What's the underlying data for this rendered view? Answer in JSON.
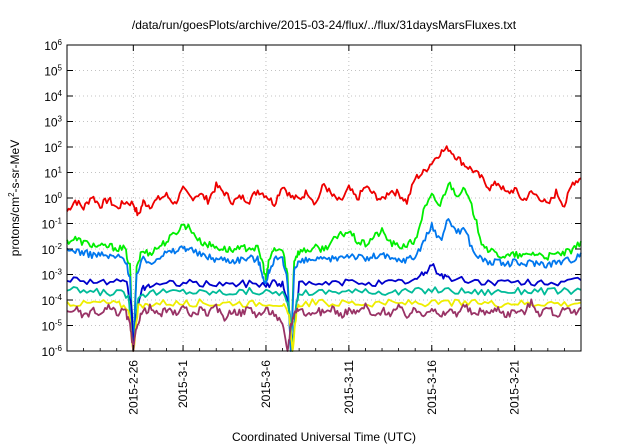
{
  "chart_data": {
    "type": "line",
    "title": "/data/run/goesPlots/archive/2015-03-24/flux/../flux/31daysMarsFluxes.txt",
    "xlabel": "Coordinated Universal Time (UTC)",
    "ylabel_parts": [
      "protons/cm",
      "2",
      "-s-sr-MeV"
    ],
    "yscale": "log",
    "ylim": [
      1e-06,
      1000000.0
    ],
    "xlim": [
      "2015-02-22",
      "2015-03-25"
    ],
    "grid": true,
    "y_ticks": [
      {
        "base": "10",
        "exp": "-6",
        "value": 1e-06
      },
      {
        "base": "10",
        "exp": "-5",
        "value": 1e-05
      },
      {
        "base": "10",
        "exp": "-4",
        "value": 0.0001
      },
      {
        "base": "10",
        "exp": "-3",
        "value": 0.001
      },
      {
        "base": "10",
        "exp": "-2",
        "value": 0.01
      },
      {
        "base": "10",
        "exp": "-1",
        "value": 0.1
      },
      {
        "base": "10",
        "exp": "0",
        "value": 1
      },
      {
        "base": "10",
        "exp": "1",
        "value": 10.0
      },
      {
        "base": "10",
        "exp": "2",
        "value": 100.0
      },
      {
        "base": "10",
        "exp": "3",
        "value": 1000.0
      },
      {
        "base": "10",
        "exp": "4",
        "value": 10000.0
      },
      {
        "base": "10",
        "exp": "5",
        "value": 100000.0
      },
      {
        "base": "10",
        "exp": "6",
        "value": 1000000.0
      }
    ],
    "x_ticks": [
      {
        "label": "2015-2-26",
        "day": 4
      },
      {
        "label": "2015-3-1",
        "day": 7
      },
      {
        "label": "2015-3-6",
        "day": 12
      },
      {
        "label": "2015-3-11",
        "day": 17
      },
      {
        "label": "2015-3-16",
        "day": 22
      },
      {
        "label": "2015-3-21",
        "day": 27
      }
    ],
    "series": [
      {
        "color": "#ee0000",
        "x": [
          0,
          0.5,
          1,
          1.5,
          2,
          2.5,
          3,
          3.5,
          4,
          4.3,
          4.6,
          5,
          5.5,
          6,
          6.5,
          7,
          7.5,
          8,
          8.5,
          9,
          9.5,
          10,
          10.5,
          11,
          11.5,
          12,
          12.5,
          13,
          13.5,
          14,
          14.5,
          15,
          15.5,
          16,
          16.5,
          17,
          17.5,
          18,
          18.5,
          19,
          19.5,
          20,
          20.5,
          21,
          21.5,
          22,
          22.5,
          23,
          23.5,
          24,
          24.5,
          25,
          25.5,
          26,
          26.5,
          27,
          27.5,
          28,
          28.5,
          29,
          29.5,
          30,
          30.5,
          31
        ],
        "y": [
          0.3,
          0.8,
          0.4,
          1.2,
          0.5,
          0.9,
          0.4,
          0.7,
          0.6,
          0.2,
          0.7,
          0.5,
          0.9,
          1.3,
          0.6,
          2.1,
          1.0,
          1.5,
          0.8,
          3.0,
          1.6,
          0.7,
          1.1,
          0.8,
          2.0,
          1.3,
          0.6,
          3.2,
          1.1,
          0.9,
          1.8,
          0.6,
          3.5,
          1.2,
          0.7,
          2.4,
          0.9,
          2.8,
          1.4,
          0.8,
          2.0,
          1.5,
          0.7,
          6.0,
          10,
          25,
          60,
          90,
          40,
          20,
          12,
          6,
          2.5,
          4,
          1.5,
          2.2,
          0.8,
          1.6,
          1.1,
          0.5,
          1.7,
          0.5,
          4.0,
          6.0
        ]
      },
      {
        "color": "#00ee00",
        "x": [
          0,
          0.5,
          1,
          1.5,
          2,
          2.5,
          3,
          3.5,
          3.8,
          4,
          4.2,
          4.5,
          5,
          5.5,
          6,
          6.5,
          7,
          7.4,
          8,
          8.5,
          9,
          9.5,
          10,
          10.5,
          11,
          11.5,
          11.8,
          12,
          12.2,
          12.5,
          13,
          13.3,
          13.5,
          13.7,
          14,
          14.5,
          15,
          15.5,
          16,
          16.5,
          17,
          17.5,
          18,
          18.5,
          19,
          19.5,
          20,
          20.5,
          21,
          21.5,
          22,
          22.5,
          23,
          23.5,
          24,
          24.5,
          25,
          25.5,
          26,
          26.5,
          27,
          27.5,
          28,
          28.5,
          29,
          29.5,
          30,
          30.5,
          31
        ],
        "y": [
          0.02,
          0.025,
          0.018,
          0.015,
          0.012,
          0.013,
          0.011,
          0.01,
          0.002,
          1e-06,
          0.002,
          0.008,
          0.007,
          0.012,
          0.02,
          0.04,
          0.09,
          0.07,
          0.02,
          0.015,
          0.012,
          0.01,
          0.009,
          0.01,
          0.012,
          0.01,
          0.003,
          0.0006,
          0.004,
          0.01,
          0.009,
          0.001,
          1e-06,
          0.004,
          0.008,
          0.009,
          0.011,
          0.01,
          0.02,
          0.035,
          0.05,
          0.02,
          0.015,
          0.03,
          0.05,
          0.018,
          0.012,
          0.015,
          0.02,
          0.3,
          1.2,
          0.5,
          4.0,
          1.5,
          2.0,
          0.3,
          0.02,
          0.008,
          0.006,
          0.005,
          0.006,
          0.005,
          0.007,
          0.006,
          0.005,
          0.006,
          0.007,
          0.008,
          0.02
        ]
      },
      {
        "color": "#0077ee",
        "x": [
          0,
          0.5,
          1,
          1.5,
          2,
          2.5,
          3,
          3.5,
          3.8,
          4,
          4.2,
          4.5,
          5,
          5.5,
          6,
          6.5,
          7,
          7.4,
          8,
          8.5,
          9,
          9.5,
          10,
          10.5,
          11,
          11.5,
          11.8,
          12,
          12.2,
          12.5,
          13,
          13.3,
          13.5,
          13.7,
          14,
          14.5,
          15,
          15.5,
          16,
          16.5,
          17,
          17.5,
          18,
          18.5,
          19,
          19.5,
          20,
          20.5,
          21,
          21.5,
          22,
          22.5,
          23,
          23.5,
          24,
          24.5,
          25,
          25.5,
          26,
          26.5,
          27,
          27.5,
          28,
          28.5,
          29,
          29.5,
          30,
          30.5,
          31
        ],
        "y": [
          0.008,
          0.009,
          0.007,
          0.006,
          0.006,
          0.005,
          0.005,
          0.004,
          0.0008,
          1e-06,
          0.001,
          0.004,
          0.003,
          0.005,
          0.007,
          0.008,
          0.012,
          0.01,
          0.006,
          0.005,
          0.004,
          0.004,
          0.0035,
          0.004,
          0.0045,
          0.004,
          0.001,
          0.0004,
          0.0015,
          0.004,
          0.0035,
          0.0005,
          1e-06,
          0.0015,
          0.003,
          0.0035,
          0.004,
          0.0035,
          0.004,
          0.005,
          0.006,
          0.005,
          0.004,
          0.005,
          0.006,
          0.004,
          0.0035,
          0.004,
          0.005,
          0.02,
          0.08,
          0.02,
          0.15,
          0.05,
          0.06,
          0.008,
          0.004,
          0.003,
          0.003,
          0.0025,
          0.003,
          0.0025,
          0.003,
          0.0028,
          0.0025,
          0.003,
          0.0035,
          0.004,
          0.007
        ]
      },
      {
        "color": "#0000cc",
        "x": [
          0,
          1,
          2,
          3,
          3.6,
          3.9,
          4,
          4.2,
          4.6,
          5,
          6,
          7,
          8,
          9,
          10,
          11,
          12,
          12.5,
          13,
          13.4,
          13.6,
          13.8,
          14,
          15,
          16,
          17,
          18,
          19,
          20,
          21,
          21.5,
          22,
          22.5,
          23,
          24,
          25,
          26,
          27,
          28,
          29,
          30,
          31
        ],
        "y": [
          0.0007,
          0.0006,
          0.0005,
          0.0005,
          0.0004,
          5e-05,
          1e-06,
          4e-05,
          0.0003,
          0.0004,
          0.0004,
          0.0005,
          0.0004,
          0.00045,
          0.0004,
          0.00045,
          0.0004,
          0.0005,
          0.0004,
          5e-05,
          1e-06,
          5e-05,
          0.0004,
          0.0004,
          0.00045,
          0.0005,
          0.0005,
          0.00045,
          0.0005,
          0.0006,
          0.001,
          0.0025,
          0.001,
          0.0007,
          0.0006,
          0.0005,
          0.0005,
          0.00045,
          0.0005,
          0.0005,
          0.00045,
          0.0006
        ]
      },
      {
        "color": "#00bb99",
        "x": [
          0,
          1,
          2,
          3,
          3.7,
          4,
          4.3,
          5,
          6,
          7,
          8,
          9,
          10,
          11,
          12,
          13,
          13.4,
          13.6,
          13.8,
          14,
          15,
          16,
          17,
          18,
          19,
          20,
          21,
          22,
          23,
          24,
          25,
          26,
          27,
          28,
          29,
          30,
          31
        ],
        "y": [
          0.00025,
          0.00022,
          0.0002,
          0.0002,
          0.00015,
          1e-06,
          0.00015,
          0.0002,
          0.0002,
          0.00022,
          0.0002,
          0.0002,
          0.0002,
          0.00022,
          0.0002,
          0.0002,
          5e-05,
          1e-06,
          5e-05,
          0.0002,
          0.0002,
          0.00022,
          0.00022,
          0.0002,
          0.00022,
          0.0002,
          0.00022,
          0.00025,
          0.00024,
          0.00022,
          0.0002,
          0.00022,
          0.00022,
          0.00024,
          0.00022,
          0.00022,
          0.00025
        ]
      },
      {
        "color": "#eeee00",
        "x": [
          0,
          1,
          2,
          3,
          3.7,
          4,
          4.3,
          5,
          6,
          7,
          8,
          9,
          10,
          11,
          12,
          13,
          13.4,
          13.6,
          13.8,
          14,
          15,
          16,
          17,
          18,
          19,
          20,
          21,
          22,
          23,
          24,
          25,
          26,
          27,
          28,
          29,
          30,
          31
        ],
        "y": [
          8e-05,
          7e-05,
          8e-05,
          7e-05,
          5e-05,
          1e-06,
          5e-05,
          7e-05,
          8e-05,
          7e-05,
          8e-05,
          7e-05,
          8e-05,
          7e-05,
          8e-05,
          7e-05,
          2e-05,
          1e-06,
          2e-05,
          7e-05,
          8e-05,
          7e-05,
          8e-05,
          7e-05,
          8e-05,
          7e-05,
          8e-05,
          7e-05,
          8e-05,
          7e-05,
          8e-05,
          7e-05,
          8e-05,
          7e-05,
          8e-05,
          7e-05,
          8e-05
        ]
      },
      {
        "color": "#993366",
        "x": [
          0,
          0.5,
          1,
          1.5,
          2,
          2.5,
          3,
          3.5,
          3.8,
          4,
          4.2,
          4.5,
          5,
          5.5,
          6,
          6.5,
          7,
          7.5,
          8,
          8.5,
          9,
          9.5,
          10,
          10.5,
          11,
          11.5,
          12,
          12.5,
          13,
          13.3,
          13.5,
          13.7,
          14,
          14.5,
          15,
          15.5,
          16,
          16.5,
          17,
          17.5,
          18,
          18.5,
          19,
          19.5,
          20,
          20.5,
          21,
          21.5,
          22,
          22.5,
          23,
          23.5,
          24,
          24.5,
          25,
          25.5,
          26,
          26.5,
          27,
          27.5,
          28,
          28.5,
          29,
          29.5,
          30,
          30.5,
          31
        ],
        "y": [
          3e-05,
          5e-05,
          2e-05,
          4e-05,
          2.5e-05,
          5e-05,
          3e-05,
          4e-05,
          1e-05,
          1e-06,
          1e-05,
          3e-05,
          5e-05,
          2.5e-05,
          4e-05,
          3e-05,
          5e-05,
          2.5e-05,
          4e-05,
          3e-05,
          5e-05,
          2e-05,
          4e-05,
          3e-05,
          5e-05,
          2.5e-05,
          4e-05,
          3e-05,
          1e-05,
          1e-06,
          1e-05,
          3e-05,
          5e-05,
          2.5e-05,
          4e-05,
          3e-05,
          5e-05,
          2.5e-05,
          4e-05,
          3e-05,
          6e-05,
          2e-05,
          4e-05,
          3e-05,
          5e-05,
          2.5e-05,
          4e-05,
          3e-05,
          5e-05,
          2e-05,
          4e-05,
          3e-05,
          6e-05,
          2.5e-05,
          4e-05,
          3e-05,
          5e-05,
          2.5e-05,
          4e-05,
          3e-05,
          8e-05,
          3e-05,
          5e-05,
          2.5e-05,
          4e-05,
          3e-05,
          5e-05
        ]
      }
    ]
  }
}
